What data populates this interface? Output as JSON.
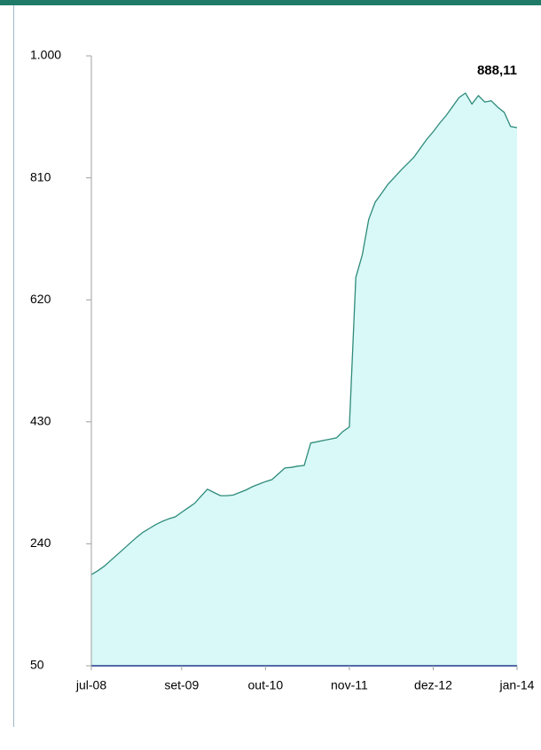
{
  "chart_data": {
    "type": "area",
    "annotation": "888,11",
    "x": [
      "2008-07",
      "2008-08",
      "2008-09",
      "2008-10",
      "2008-11",
      "2008-12",
      "2009-01",
      "2009-02",
      "2009-03",
      "2009-04",
      "2009-05",
      "2009-06",
      "2009-07",
      "2009-08",
      "2009-09",
      "2009-10",
      "2009-11",
      "2009-12",
      "2010-01",
      "2010-02",
      "2010-03",
      "2010-04",
      "2010-05",
      "2010-06",
      "2010-07",
      "2010-08",
      "2010-09",
      "2010-10",
      "2010-11",
      "2010-12",
      "2011-01",
      "2011-02",
      "2011-03",
      "2011-04",
      "2011-05",
      "2011-06",
      "2011-07",
      "2011-08",
      "2011-09",
      "2011-10",
      "2011-11",
      "2011-12",
      "2012-01",
      "2012-02",
      "2012-03",
      "2012-04",
      "2012-05",
      "2012-06",
      "2012-07",
      "2012-08",
      "2012-09",
      "2012-10",
      "2012-11",
      "2012-12",
      "2013-01",
      "2013-02",
      "2013-03",
      "2013-04",
      "2013-05",
      "2013-06",
      "2013-07",
      "2013-08",
      "2013-09",
      "2013-10",
      "2013-11",
      "2013-12",
      "2014-01"
    ],
    "series": [
      {
        "color": "#2e8b7a",
        "fill": "#d9f8f8",
        "values": [
          192,
          198,
          205,
          214,
          223,
          232,
          241,
          250,
          258,
          264,
          270,
          275,
          279,
          282,
          289,
          296,
          303,
          314,
          325,
          320,
          315,
          315,
          316,
          320,
          324,
          329,
          333,
          337,
          340,
          349,
          358,
          359,
          361,
          362,
          397,
          399,
          401,
          403,
          405,
          415,
          422,
          655,
          690,
          745,
          772,
          786,
          800,
          811,
          822,
          832,
          842,
          856,
          870,
          882,
          895,
          907,
          921,
          935,
          942,
          925,
          938,
          928,
          930,
          920,
          912,
          890,
          888.11
        ]
      }
    ],
    "xlim": [
      "2008-07",
      "2014-01"
    ],
    "xticks": [
      {
        "value": "2008-07",
        "label": "jul-08"
      },
      {
        "value": "2009-09",
        "label": "set-09"
      },
      {
        "value": "2010-10",
        "label": "out-10"
      },
      {
        "value": "2011-11",
        "label": "nov-11"
      },
      {
        "value": "2012-12",
        "label": "dez-12"
      },
      {
        "value": "2014-01",
        "label": "jan-14"
      }
    ],
    "ylim": [
      50,
      1000
    ],
    "yticks": [
      50,
      240,
      430,
      620,
      810,
      {
        "value": 1000,
        "label": "1.000"
      }
    ],
    "grid": false
  }
}
